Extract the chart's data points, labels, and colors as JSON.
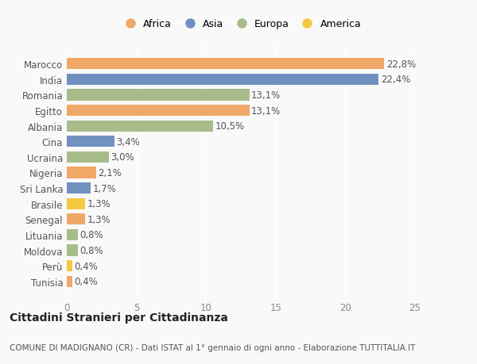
{
  "categories": [
    "Tunisia",
    "Perù",
    "Moldova",
    "Lituania",
    "Senegal",
    "Brasile",
    "Sri Lanka",
    "Nigeria",
    "Ucraina",
    "Cina",
    "Albania",
    "Egitto",
    "Romania",
    "India",
    "Marocco"
  ],
  "values": [
    0.4,
    0.4,
    0.8,
    0.8,
    1.3,
    1.3,
    1.7,
    2.1,
    3.0,
    3.4,
    10.5,
    13.1,
    13.1,
    22.4,
    22.8
  ],
  "labels": [
    "0,4%",
    "0,4%",
    "0,8%",
    "0,8%",
    "1,3%",
    "1,3%",
    "1,7%",
    "2,1%",
    "3,0%",
    "3,4%",
    "10,5%",
    "13,1%",
    "13,1%",
    "22,4%",
    "22,8%"
  ],
  "colors": [
    "#F0A868",
    "#F5C842",
    "#A8BC8A",
    "#A8BC8A",
    "#F0A868",
    "#F5C842",
    "#7090C0",
    "#F0A868",
    "#A8BC8A",
    "#7090C0",
    "#A8BC8A",
    "#F0A868",
    "#A8BC8A",
    "#7090C0",
    "#F0A868"
  ],
  "legend_items": [
    {
      "label": "Africa",
      "color": "#F0A868"
    },
    {
      "label": "Asia",
      "color": "#7090C0"
    },
    {
      "label": "Europa",
      "color": "#A8BC8A"
    },
    {
      "label": "America",
      "color": "#F5C842"
    }
  ],
  "xlim": [
    0,
    25
  ],
  "xticks": [
    0,
    5,
    10,
    15,
    20,
    25
  ],
  "title": "Cittadini Stranieri per Cittadinanza",
  "subtitle": "COMUNE DI MADIGNANO (CR) - Dati ISTAT al 1° gennaio di ogni anno - Elaborazione TUTTITALIA.IT",
  "background_color": "#f9f9f9",
  "bar_height": 0.72,
  "grid_color": "#ffffff",
  "label_fontsize": 8.5,
  "tick_fontsize": 8.5,
  "title_fontsize": 10,
  "subtitle_fontsize": 7.5
}
